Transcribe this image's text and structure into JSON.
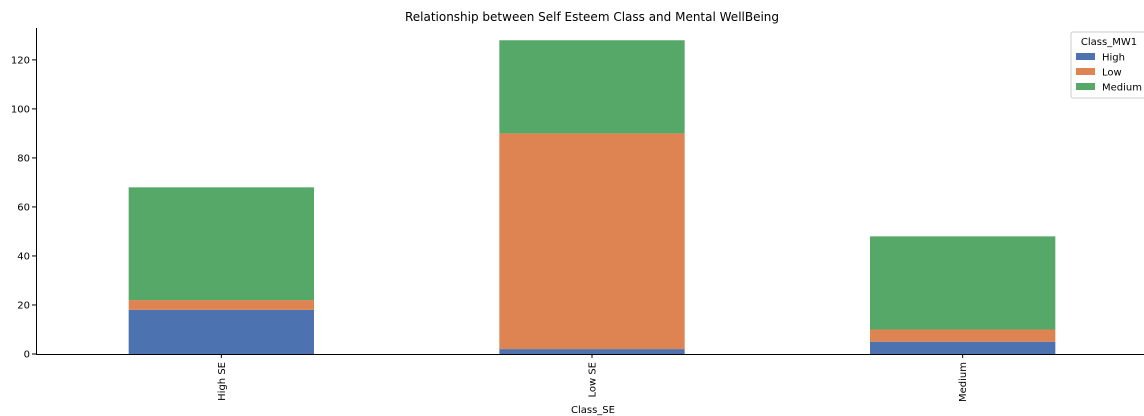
{
  "chart_data": {
    "type": "bar",
    "stacked": true,
    "title": "Relationship between Self Esteem Class and Mental WellBeing",
    "xlabel": "Class_SE",
    "ylabel": "",
    "categories": [
      "High SE",
      "Low SE",
      "Medium"
    ],
    "series": [
      {
        "name": "High",
        "color": "#4c72b0",
        "values": [
          18,
          2,
          5
        ]
      },
      {
        "name": "Low",
        "color": "#dd8452",
        "values": [
          4,
          88,
          5
        ]
      },
      {
        "name": "Medium",
        "color": "#55a868",
        "values": [
          46,
          38,
          38
        ]
      }
    ],
    "ylim": [
      0,
      133
    ],
    "yticks": [
      0,
      20,
      40,
      60,
      80,
      100,
      120
    ],
    "legend": {
      "title": "Class_MW1",
      "placement": "top-right"
    },
    "grid": false
  }
}
